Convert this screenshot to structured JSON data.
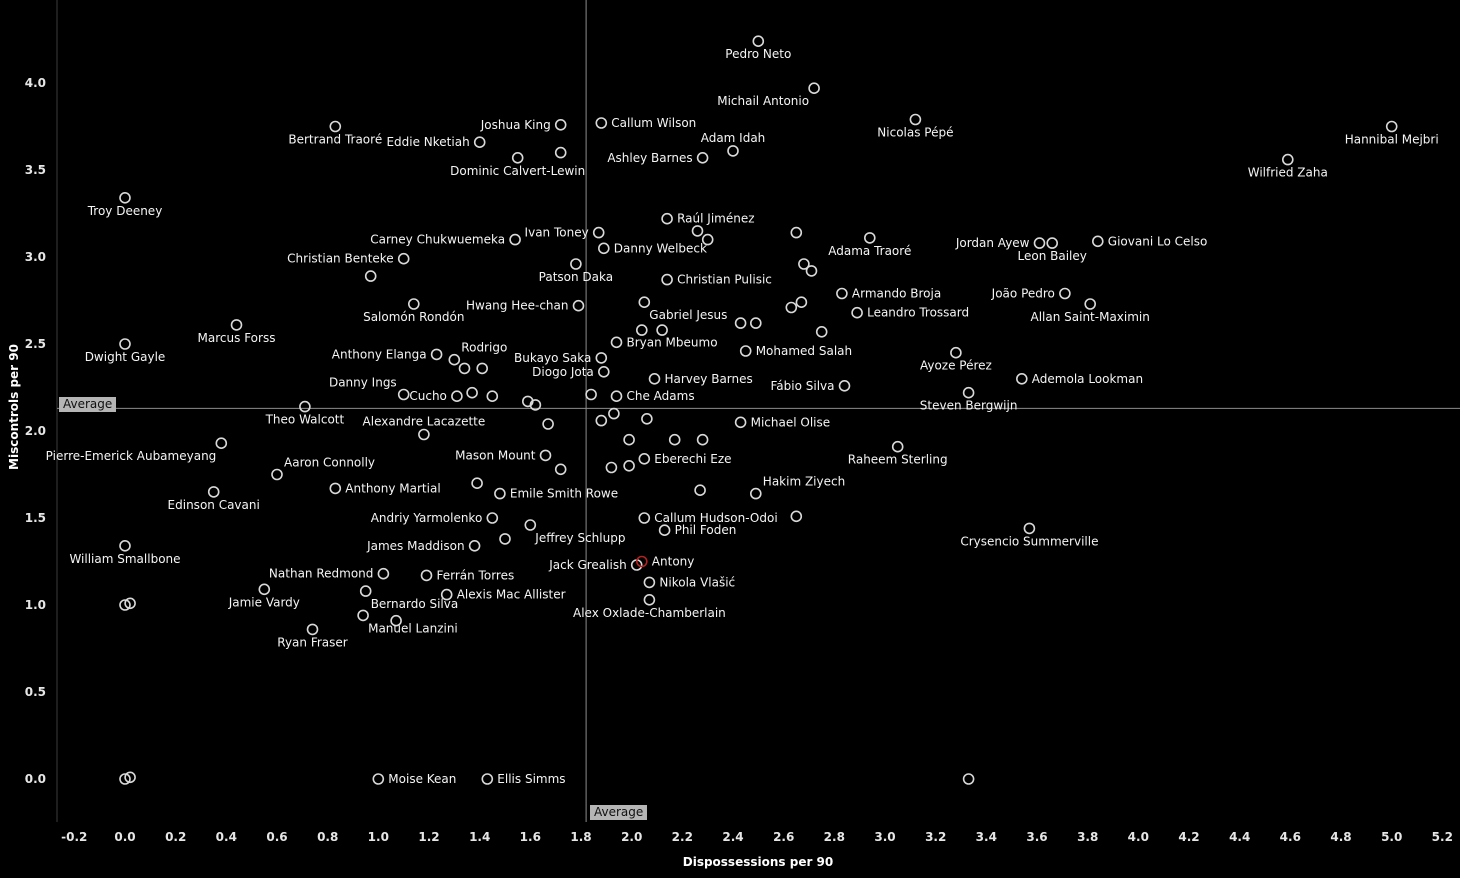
{
  "chart_data": {
    "type": "scatter",
    "title": "",
    "xlabel": "Dispossessions per 90",
    "ylabel": "Miscontrols per 90",
    "xlim": [
      -0.27,
      5.27
    ],
    "ylim": [
      -0.25,
      4.48
    ],
    "x_ticks": [
      -0.2,
      0.0,
      0.2,
      0.4,
      0.6,
      0.8,
      1.0,
      1.2,
      1.4,
      1.6,
      1.8,
      2.0,
      2.2,
      2.4,
      2.6,
      2.8,
      3.0,
      3.2,
      3.4,
      3.6,
      3.8,
      4.0,
      4.2,
      4.4,
      4.6,
      4.8,
      5.0,
      5.2
    ],
    "y_ticks": [
      0.0,
      0.5,
      1.0,
      1.5,
      2.0,
      2.5,
      3.0,
      3.5,
      4.0
    ],
    "average_x": 1.82,
    "average_y": 2.13,
    "average_label": "Average",
    "legend": "none",
    "grid": false,
    "colors": {
      "background": "#000000",
      "point": "#d9d9d9",
      "highlight": "#b22222",
      "label": "#f5f5f5",
      "tick": "#e6e6e6",
      "average_line": "#8c8c8c",
      "spine": "#3c3c3c",
      "badge_bg": "#b5b5b5",
      "badge_text": "#111111"
    },
    "points": [
      {
        "label": "Pedro Neto",
        "x": 2.5,
        "y": 4.24,
        "pos": "below"
      },
      {
        "label": "Michail Antonio",
        "x": 2.72,
        "y": 3.97,
        "pos": "below-left"
      },
      {
        "label": "Callum Wilson",
        "x": 1.88,
        "y": 3.77,
        "pos": "right"
      },
      {
        "label": "Joshua King",
        "x": 1.72,
        "y": 3.76,
        "pos": "left"
      },
      {
        "label": "Bertrand Traoré",
        "x": 0.83,
        "y": 3.75,
        "pos": "below"
      },
      {
        "label": "Eddie Nketiah",
        "x": 1.4,
        "y": 3.66,
        "pos": "left"
      },
      {
        "label": "",
        "x": 1.72,
        "y": 3.6,
        "pos": ""
      },
      {
        "label": "Adam Idah",
        "x": 2.4,
        "y": 3.61,
        "pos": "above"
      },
      {
        "label": "Ashley Barnes",
        "x": 2.28,
        "y": 3.57,
        "pos": "left"
      },
      {
        "label": "Nicolas Pépé",
        "x": 3.12,
        "y": 3.79,
        "pos": "below"
      },
      {
        "label": "Hannibal Mejbri",
        "x": 5.0,
        "y": 3.75,
        "pos": "below"
      },
      {
        "label": "Wilfried Zaha",
        "x": 4.59,
        "y": 3.56,
        "pos": "below"
      },
      {
        "label": "Dominic Calvert-Lewin",
        "x": 1.55,
        "y": 3.57,
        "pos": "below"
      },
      {
        "label": "Troy Deeney",
        "x": 0.0,
        "y": 3.34,
        "pos": "below"
      },
      {
        "label": "Raúl Jiménez",
        "x": 2.14,
        "y": 3.22,
        "pos": "right"
      },
      {
        "label": "Ivan Toney",
        "x": 1.87,
        "y": 3.14,
        "pos": "left"
      },
      {
        "label": "Carney Chukwuemeka",
        "x": 1.54,
        "y": 3.1,
        "pos": "left"
      },
      {
        "label": "Danny Welbeck",
        "x": 1.89,
        "y": 3.05,
        "pos": "right"
      },
      {
        "label": "",
        "x": 2.26,
        "y": 3.15,
        "pos": ""
      },
      {
        "label": "",
        "x": 2.3,
        "y": 3.1,
        "pos": ""
      },
      {
        "label": "Christian Benteke",
        "x": 1.1,
        "y": 2.99,
        "pos": "left"
      },
      {
        "label": "",
        "x": 0.97,
        "y": 2.89,
        "pos": ""
      },
      {
        "label": "Adama Traoré",
        "x": 2.94,
        "y": 3.11,
        "pos": "below"
      },
      {
        "label": "",
        "x": 2.65,
        "y": 3.14,
        "pos": ""
      },
      {
        "label": "",
        "x": 2.68,
        "y": 2.96,
        "pos": ""
      },
      {
        "label": "",
        "x": 2.71,
        "y": 2.92,
        "pos": ""
      },
      {
        "label": "Jordan Ayew",
        "x": 3.61,
        "y": 3.08,
        "pos": "left"
      },
      {
        "label": "Leon Bailey",
        "x": 3.66,
        "y": 3.08,
        "pos": "below"
      },
      {
        "label": "Giovani Lo Celso",
        "x": 3.84,
        "y": 3.09,
        "pos": "right"
      },
      {
        "label": "Patson Daka",
        "x": 1.78,
        "y": 2.96,
        "pos": "below"
      },
      {
        "label": "Christian Pulisic",
        "x": 2.14,
        "y": 2.87,
        "pos": "right"
      },
      {
        "label": "Armando Broja",
        "x": 2.83,
        "y": 2.79,
        "pos": "right"
      },
      {
        "label": "João Pedro",
        "x": 3.71,
        "y": 2.79,
        "pos": "left"
      },
      {
        "label": "Hwang Hee-chan",
        "x": 1.79,
        "y": 2.72,
        "pos": "left"
      },
      {
        "label": "Salomón Rondón",
        "x": 1.14,
        "y": 2.73,
        "pos": "below"
      },
      {
        "label": "Allan Saint-Maximin",
        "x": 3.81,
        "y": 2.73,
        "pos": "below"
      },
      {
        "label": "Gabriel Jesus",
        "x": 2.05,
        "y": 2.74,
        "pos": "below-right"
      },
      {
        "label": "Leandro Trossard",
        "x": 2.89,
        "y": 2.68,
        "pos": "right"
      },
      {
        "label": "",
        "x": 2.63,
        "y": 2.71,
        "pos": ""
      },
      {
        "label": "",
        "x": 2.67,
        "y": 2.74,
        "pos": ""
      },
      {
        "label": "",
        "x": 2.43,
        "y": 2.62,
        "pos": ""
      },
      {
        "label": "",
        "x": 2.49,
        "y": 2.62,
        "pos": ""
      },
      {
        "label": "",
        "x": 2.04,
        "y": 2.58,
        "pos": ""
      },
      {
        "label": "",
        "x": 2.12,
        "y": 2.58,
        "pos": ""
      },
      {
        "label": "",
        "x": 2.75,
        "y": 2.57,
        "pos": ""
      },
      {
        "label": "Marcus Forss",
        "x": 0.44,
        "y": 2.61,
        "pos": "below"
      },
      {
        "label": "Dwight Gayle",
        "x": 0.0,
        "y": 2.5,
        "pos": "below"
      },
      {
        "label": "Bryan Mbeumo",
        "x": 1.94,
        "y": 2.51,
        "pos": "right"
      },
      {
        "label": "Mohamed Salah",
        "x": 2.45,
        "y": 2.46,
        "pos": "right"
      },
      {
        "label": "Rodrigo",
        "x": 1.3,
        "y": 2.41,
        "pos": "above-right"
      },
      {
        "label": "Anthony Elanga",
        "x": 1.23,
        "y": 2.44,
        "pos": "left"
      },
      {
        "label": "Bukayo Saka",
        "x": 1.88,
        "y": 2.42,
        "pos": "left"
      },
      {
        "label": "",
        "x": 1.34,
        "y": 2.36,
        "pos": ""
      },
      {
        "label": "",
        "x": 1.41,
        "y": 2.36,
        "pos": ""
      },
      {
        "label": "Diogo Jota",
        "x": 1.89,
        "y": 2.34,
        "pos": "left"
      },
      {
        "label": "Harvey Barnes",
        "x": 2.09,
        "y": 2.3,
        "pos": "right"
      },
      {
        "label": "Fábio Silva",
        "x": 2.84,
        "y": 2.26,
        "pos": "left"
      },
      {
        "label": "Ayoze Pérez",
        "x": 3.28,
        "y": 2.45,
        "pos": "below"
      },
      {
        "label": "Ademola Lookman",
        "x": 3.54,
        "y": 2.3,
        "pos": "right"
      },
      {
        "label": "Danny Ings",
        "x": 1.1,
        "y": 2.21,
        "pos": "above-left"
      },
      {
        "label": "Cucho",
        "x": 1.31,
        "y": 2.2,
        "pos": "left"
      },
      {
        "label": "",
        "x": 1.37,
        "y": 2.22,
        "pos": ""
      },
      {
        "label": "",
        "x": 1.45,
        "y": 2.2,
        "pos": ""
      },
      {
        "label": "",
        "x": 1.59,
        "y": 2.17,
        "pos": ""
      },
      {
        "label": "",
        "x": 1.62,
        "y": 2.15,
        "pos": ""
      },
      {
        "label": "",
        "x": 1.84,
        "y": 2.21,
        "pos": ""
      },
      {
        "label": "Che Adams",
        "x": 1.94,
        "y": 2.2,
        "pos": "right"
      },
      {
        "label": "Steven Bergwijn",
        "x": 3.33,
        "y": 2.22,
        "pos": "below"
      },
      {
        "label": "Theo Walcott",
        "x": 0.71,
        "y": 2.14,
        "pos": "below"
      },
      {
        "label": "Alexandre Lacazette",
        "x": 1.18,
        "y": 1.98,
        "pos": "above"
      },
      {
        "label": "Michael Olise",
        "x": 2.43,
        "y": 2.05,
        "pos": "right"
      },
      {
        "label": "",
        "x": 1.88,
        "y": 2.06,
        "pos": ""
      },
      {
        "label": "",
        "x": 1.93,
        "y": 2.1,
        "pos": ""
      },
      {
        "label": "",
        "x": 1.67,
        "y": 2.04,
        "pos": ""
      },
      {
        "label": "",
        "x": 2.06,
        "y": 2.07,
        "pos": ""
      },
      {
        "label": "",
        "x": 1.99,
        "y": 1.95,
        "pos": ""
      },
      {
        "label": "",
        "x": 2.17,
        "y": 1.95,
        "pos": ""
      },
      {
        "label": "",
        "x": 2.28,
        "y": 1.95,
        "pos": ""
      },
      {
        "label": "Pierre-Emerick Aubameyang",
        "x": 0.38,
        "y": 1.93,
        "pos": "below-left"
      },
      {
        "label": "Aaron Connolly",
        "x": 0.6,
        "y": 1.75,
        "pos": "above-right"
      },
      {
        "label": "Mason Mount",
        "x": 1.66,
        "y": 1.86,
        "pos": "left"
      },
      {
        "label": "Eberechi Eze",
        "x": 2.05,
        "y": 1.84,
        "pos": "right"
      },
      {
        "label": "",
        "x": 1.92,
        "y": 1.79,
        "pos": ""
      },
      {
        "label": "",
        "x": 1.99,
        "y": 1.8,
        "pos": ""
      },
      {
        "label": "",
        "x": 1.72,
        "y": 1.78,
        "pos": ""
      },
      {
        "label": "Hakim Ziyech",
        "x": 2.49,
        "y": 1.64,
        "pos": "above-right"
      },
      {
        "label": "Raheem Sterling",
        "x": 3.05,
        "y": 1.91,
        "pos": "below"
      },
      {
        "label": "Edinson Cavani",
        "x": 0.35,
        "y": 1.65,
        "pos": "below"
      },
      {
        "label": "Anthony Martial",
        "x": 0.83,
        "y": 1.67,
        "pos": "right"
      },
      {
        "label": "Emile Smith Rowe",
        "x": 1.48,
        "y": 1.64,
        "pos": "right"
      },
      {
        "label": "",
        "x": 1.39,
        "y": 1.7,
        "pos": ""
      },
      {
        "label": "",
        "x": 2.27,
        "y": 1.66,
        "pos": ""
      },
      {
        "label": "",
        "x": 2.65,
        "y": 1.51,
        "pos": ""
      },
      {
        "label": "Andriy Yarmolenko",
        "x": 1.45,
        "y": 1.5,
        "pos": "left"
      },
      {
        "label": "Callum Hudson-Odoi",
        "x": 2.05,
        "y": 1.5,
        "pos": "right"
      },
      {
        "label": "Phil Foden",
        "x": 2.13,
        "y": 1.43,
        "pos": "right"
      },
      {
        "label": "James Maddison",
        "x": 1.38,
        "y": 1.34,
        "pos": "left"
      },
      {
        "label": "",
        "x": 1.5,
        "y": 1.38,
        "pos": ""
      },
      {
        "label": "Jeffrey Schlupp",
        "x": 1.6,
        "y": 1.46,
        "pos": "below-right"
      },
      {
        "label": "Crysencio Summerville",
        "x": 3.57,
        "y": 1.44,
        "pos": "below"
      },
      {
        "label": "William Smallbone",
        "x": 0.0,
        "y": 1.34,
        "pos": "below"
      },
      {
        "label": "Nathan Redmond",
        "x": 1.02,
        "y": 1.18,
        "pos": "left"
      },
      {
        "label": "Jack Grealish",
        "x": 2.02,
        "y": 1.23,
        "pos": "left"
      },
      {
        "label": "Antony",
        "x": 2.04,
        "y": 1.25,
        "pos": "right",
        "highlight": true
      },
      {
        "label": "Ferrán Torres",
        "x": 1.19,
        "y": 1.17,
        "pos": "right"
      },
      {
        "label": "Nikola Vlašić",
        "x": 2.07,
        "y": 1.13,
        "pos": "right"
      },
      {
        "label": "Bernardo Silva",
        "x": 0.95,
        "y": 1.08,
        "pos": "below-right"
      },
      {
        "label": "Alexis Mac Allister",
        "x": 1.27,
        "y": 1.06,
        "pos": "right"
      },
      {
        "label": "Jamie Vardy",
        "x": 0.55,
        "y": 1.09,
        "pos": "below"
      },
      {
        "label": "Manuel Lanzini",
        "x": 0.94,
        "y": 0.94,
        "pos": "below-right"
      },
      {
        "label": "",
        "x": 1.07,
        "y": 0.91,
        "pos": ""
      },
      {
        "label": "Alex Oxlade-Chamberlain",
        "x": 2.07,
        "y": 1.03,
        "pos": "below"
      },
      {
        "label": "Ryan Fraser",
        "x": 0.74,
        "y": 0.86,
        "pos": "below"
      },
      {
        "label": "",
        "x": 0.0,
        "y": 1.0,
        "pos": ""
      },
      {
        "label": "",
        "x": 0.02,
        "y": 1.01,
        "pos": ""
      },
      {
        "label": "Moise Kean",
        "x": 1.0,
        "y": 0.0,
        "pos": "right"
      },
      {
        "label": "Ellis Simms",
        "x": 1.43,
        "y": 0.0,
        "pos": "right"
      },
      {
        "label": "",
        "x": 0.0,
        "y": 0.0,
        "pos": ""
      },
      {
        "label": "",
        "x": 0.02,
        "y": 0.01,
        "pos": ""
      },
      {
        "label": "",
        "x": 3.33,
        "y": 0.0,
        "pos": ""
      }
    ]
  }
}
